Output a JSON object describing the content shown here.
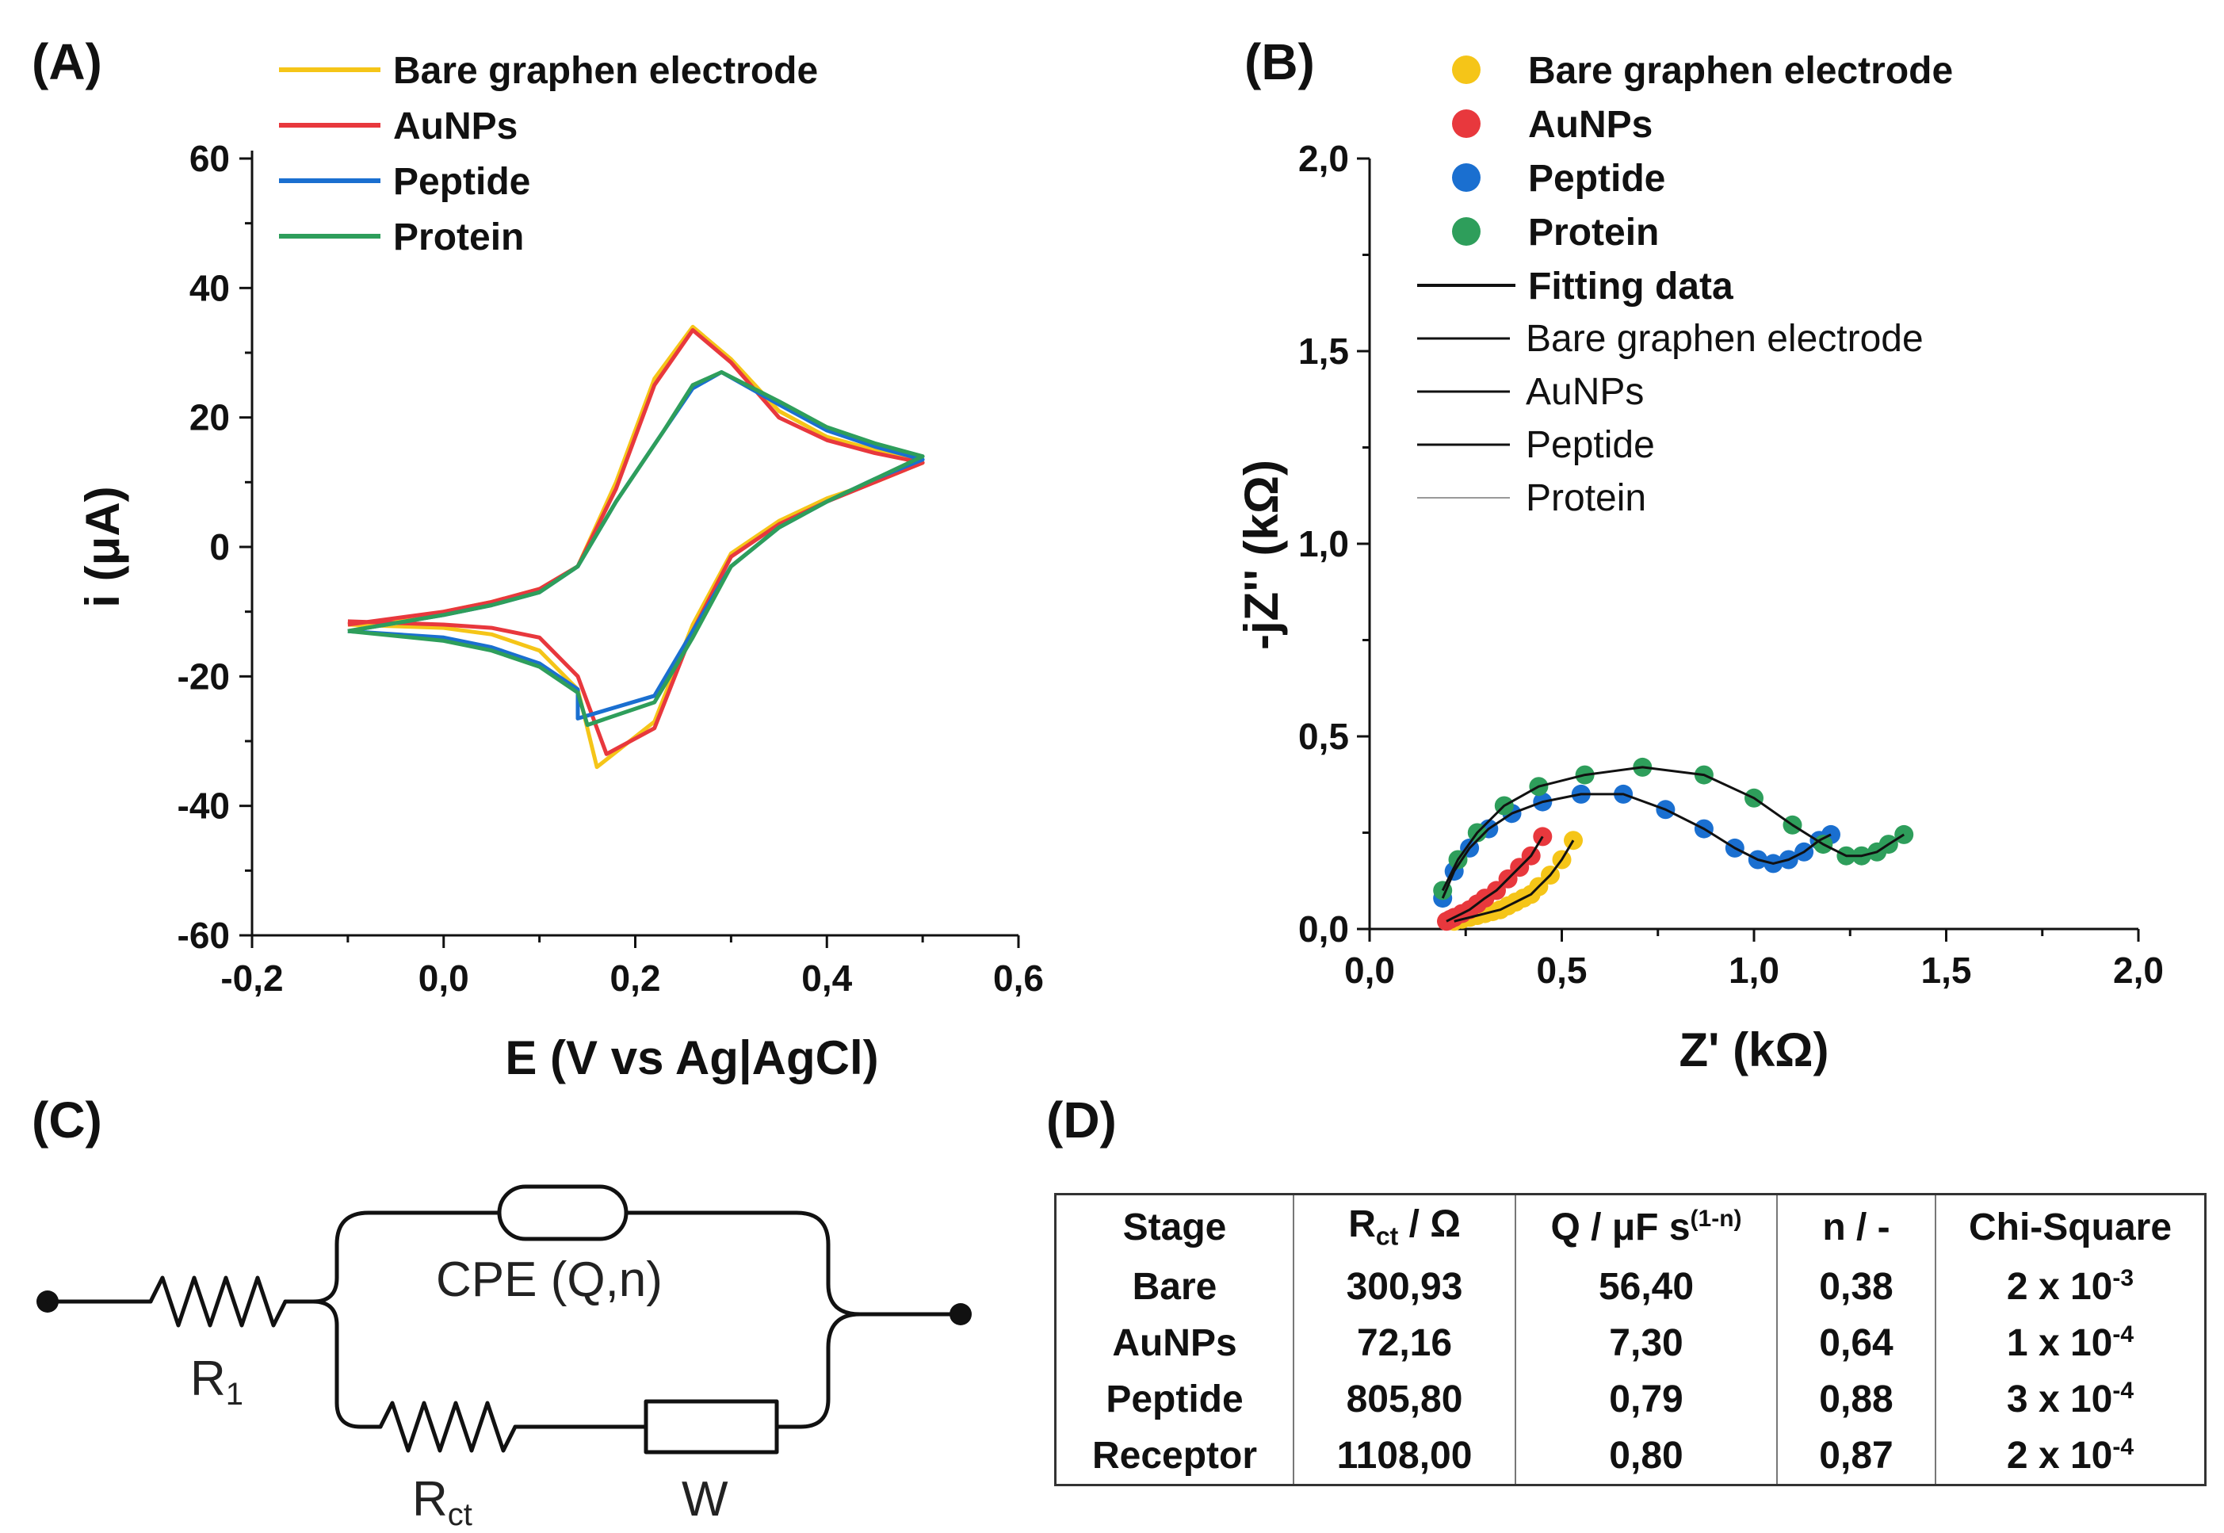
{
  "panels": {
    "A": "(A)",
    "B": "(B)",
    "C": "(C)",
    "D": "(D)"
  },
  "chart_data": [
    {
      "type": "line",
      "title": "",
      "xlabel": "E (V vs Ag|AgCl)",
      "ylabel": "i (μA)",
      "xlim": [
        -0.2,
        0.6
      ],
      "ylim": [
        -60,
        60
      ],
      "xticks": [
        "-0,2",
        "0,0",
        "0,2",
        "0,4",
        "0,6"
      ],
      "yticks": [
        "-60",
        "-40",
        "-20",
        "0",
        "20",
        "40",
        "60"
      ],
      "legend_position": "top",
      "series": [
        {
          "name": "Bare graphen electrode",
          "color": "#f5c518",
          "Epa": 0.26,
          "ipa": 34,
          "Epc": 0.16,
          "ipc": -34,
          "x": [
            -0.1,
            0.0,
            0.05,
            0.1,
            0.14,
            0.18,
            0.22,
            0.26,
            0.3,
            0.35,
            0.4,
            0.45,
            0.5,
            0.45,
            0.4,
            0.35,
            0.3,
            0.25,
            0.2,
            0.16,
            0.1,
            0.05,
            0.0,
            -0.05,
            -0.1
          ],
          "forward": [
            -13,
            -10,
            -8.5,
            -6.5,
            -3,
            10,
            26,
            34,
            29,
            21,
            17,
            15,
            13
          ],
          "reverse": [
            13,
            10,
            7.5,
            4,
            -1,
            -12,
            -27,
            -34,
            -22,
            -16,
            -13.5,
            -12.5,
            -12
          ]
        },
        {
          "name": "AuNPs",
          "color": "#e8383d",
          "Epa": 0.26,
          "ipa": 33.5,
          "Epc": 0.17,
          "ipc": -32,
          "forward": [
            -12,
            -10,
            -8.5,
            -6.5,
            -3,
            9,
            25,
            33.5,
            28.5,
            20,
            16.5,
            14.5,
            13
          ],
          "reverse": [
            13,
            10,
            7,
            3.5,
            -1.5,
            -13,
            -28,
            -32,
            -20,
            -14,
            -12.5,
            -12,
            -11.5
          ]
        },
        {
          "name": "Peptide",
          "color": "#1a6fd0",
          "Epa": 0.29,
          "ipa": 27,
          "Epc": 0.14,
          "ipc": -26.5,
          "forward": [
            -13,
            -10.5,
            -9,
            -7,
            -3,
            7,
            18,
            24.5,
            27,
            22,
            18,
            15.5,
            13.5
          ],
          "reverse": [
            13.5,
            10.5,
            7,
            3,
            -3,
            -13,
            -23,
            -26.5,
            -22,
            -18,
            -15.5,
            -14,
            -13
          ]
        },
        {
          "name": "Protein",
          "color": "#2e9e5b",
          "Epa": 0.29,
          "ipa": 27,
          "Epc": 0.15,
          "ipc": -27.5,
          "forward": [
            -13,
            -10.5,
            -9,
            -7,
            -3,
            7,
            18,
            25,
            27,
            22.5,
            18.5,
            16,
            14
          ],
          "reverse": [
            14,
            10.5,
            7,
            3,
            -3,
            -14,
            -24,
            -27.5,
            -22.5,
            -18.5,
            -16,
            -14.5,
            -13
          ]
        }
      ]
    },
    {
      "type": "scatter",
      "title": "",
      "xlabel": "Z' (kΩ)",
      "ylabel": "-jZ'' (kΩ)",
      "xlim": [
        0.0,
        2.0
      ],
      "ylim": [
        0.0,
        2.0
      ],
      "xticks": [
        "0,0",
        "0,5",
        "1,0",
        "1,5",
        "2,0"
      ],
      "yticks": [
        "0,0",
        "0,5",
        "1,0",
        "1,5",
        "2,0"
      ],
      "legend_position": "top-right",
      "legend_fit_header": "Fitting data",
      "series": [
        {
          "name": "Bare graphen electrode",
          "color": "#f5c518",
          "fit_label": "Bare graphen electrode",
          "x": [
            0.22,
            0.24,
            0.26,
            0.28,
            0.3,
            0.32,
            0.34,
            0.36,
            0.38,
            0.4,
            0.42,
            0.44,
            0.47,
            0.5,
            0.53
          ],
          "y": [
            0.02,
            0.025,
            0.03,
            0.035,
            0.04,
            0.045,
            0.05,
            0.06,
            0.07,
            0.08,
            0.09,
            0.11,
            0.14,
            0.18,
            0.23
          ]
        },
        {
          "name": "AuNPs",
          "color": "#e8383d",
          "fit_label": "AuNPs",
          "x": [
            0.2,
            0.21,
            0.22,
            0.24,
            0.26,
            0.28,
            0.3,
            0.33,
            0.36,
            0.39,
            0.42,
            0.45
          ],
          "y": [
            0.02,
            0.025,
            0.03,
            0.04,
            0.05,
            0.065,
            0.08,
            0.1,
            0.13,
            0.16,
            0.19,
            0.24
          ]
        },
        {
          "name": "Peptide",
          "color": "#1a6fd0",
          "fit_label": "Peptide",
          "x": [
            0.19,
            0.22,
            0.26,
            0.31,
            0.37,
            0.45,
            0.55,
            0.66,
            0.77,
            0.87,
            0.95,
            1.01,
            1.05,
            1.09,
            1.13,
            1.17,
            1.2
          ],
          "y": [
            0.08,
            0.15,
            0.21,
            0.26,
            0.3,
            0.33,
            0.35,
            0.35,
            0.31,
            0.26,
            0.21,
            0.18,
            0.17,
            0.18,
            0.2,
            0.23,
            0.245
          ]
        },
        {
          "name": "Protein",
          "color": "#2e9e5b",
          "fit_label": "Protein",
          "x": [
            0.19,
            0.23,
            0.28,
            0.35,
            0.44,
            0.56,
            0.71,
            0.87,
            1.0,
            1.1,
            1.18,
            1.24,
            1.28,
            1.32,
            1.35,
            1.39
          ],
          "y": [
            0.1,
            0.18,
            0.25,
            0.32,
            0.37,
            0.4,
            0.42,
            0.4,
            0.34,
            0.27,
            0.22,
            0.19,
            0.19,
            0.2,
            0.22,
            0.245
          ]
        }
      ]
    }
  ],
  "circuit": {
    "r1": "R",
    "r1_sub": "1",
    "cpe": "CPE (Q,n)",
    "rct": "R",
    "rct_sub": "ct",
    "w": "W"
  },
  "table": {
    "headers": {
      "stage": "Stage",
      "rct_main": "R",
      "rct_sub": "ct",
      "rct_unit": " / Ω",
      "q_main": "Q / μF s",
      "q_sup": "(1-n)",
      "n": "n / -",
      "chi": "Chi-Square"
    },
    "rows": [
      {
        "stage": "Bare",
        "rct": "300,93",
        "q": "56,40",
        "n": "0,38",
        "chi_base": "2 x 10",
        "chi_exp": "-3"
      },
      {
        "stage": "AuNPs",
        "rct": "72,16",
        "q": "7,30",
        "n": "0,64",
        "chi_base": "1 x 10",
        "chi_exp": "-4"
      },
      {
        "stage": "Peptide",
        "rct": "805,80",
        "q": "0,79",
        "n": "0,88",
        "chi_base": "3 x 10",
        "chi_exp": "-4"
      },
      {
        "stage": "Receptor",
        "rct": "1108,00",
        "q": "0,80",
        "n": "0,87",
        "chi_base": "2 x 10",
        "chi_exp": "-4"
      }
    ]
  }
}
